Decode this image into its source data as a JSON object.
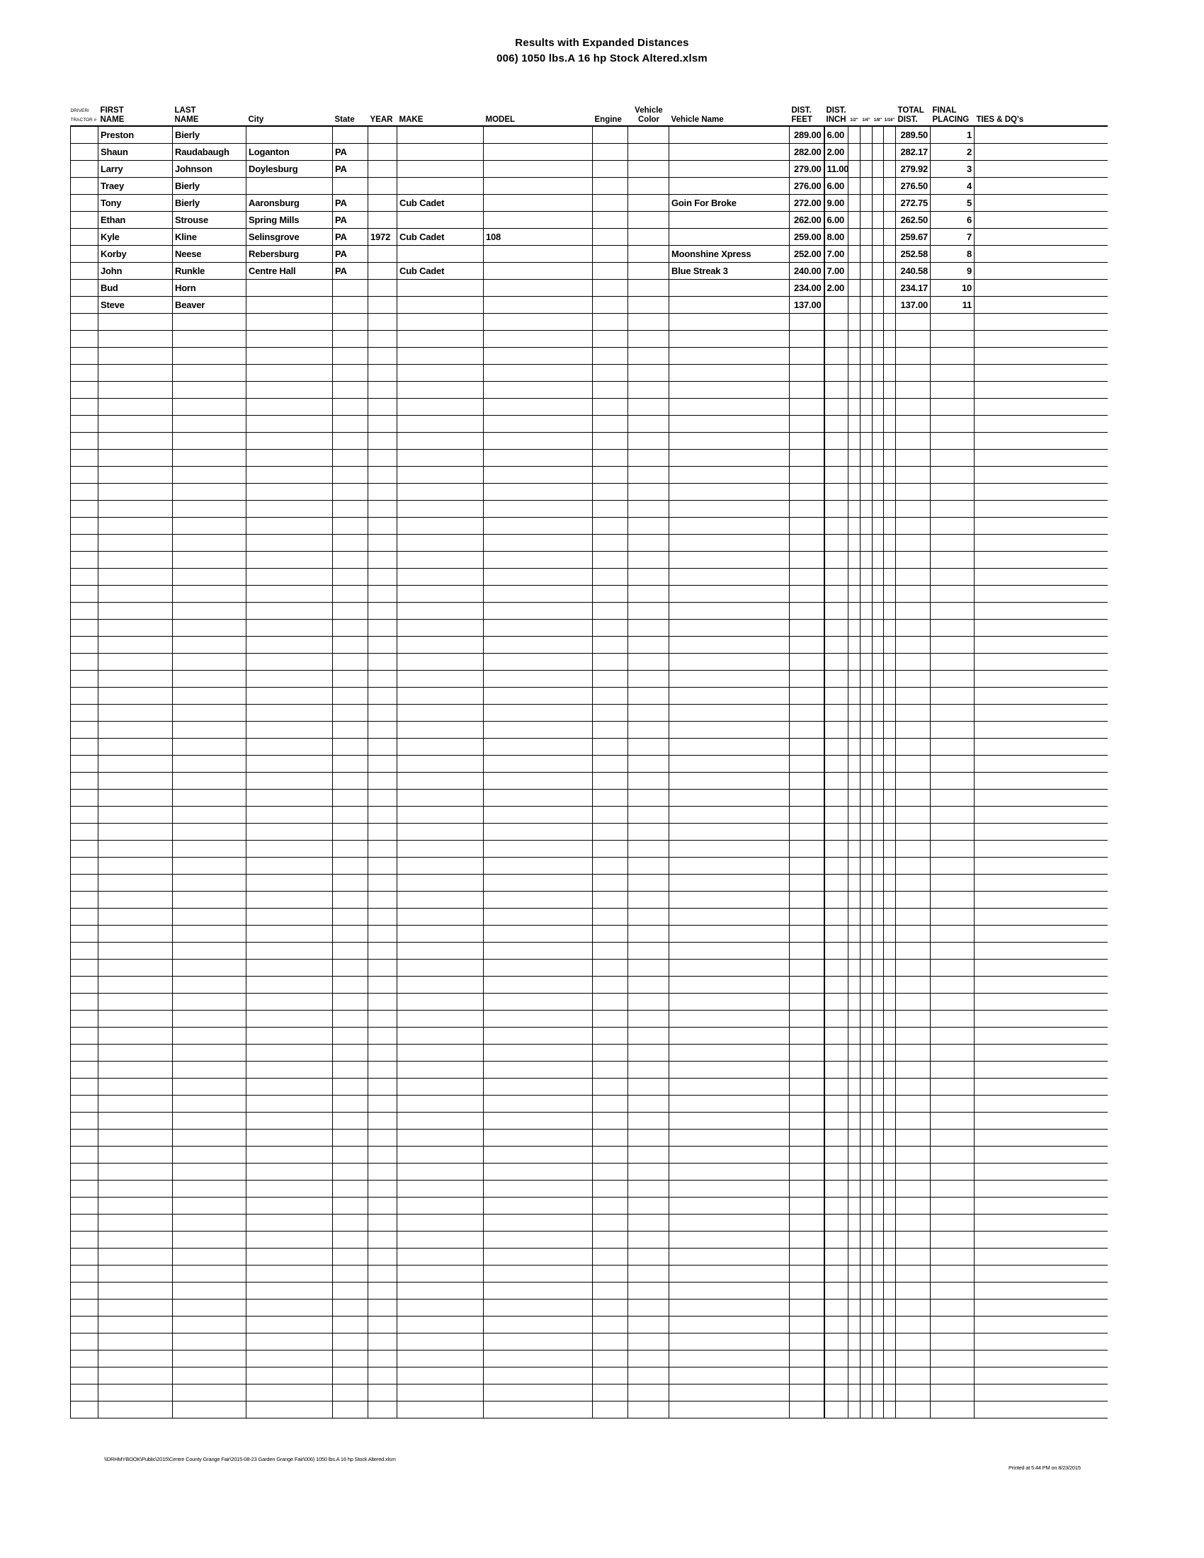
{
  "title": "Results with Expanded Distances",
  "subtitle": "006) 1050 lbs.A 16 hp Stock Altered.xlsm",
  "headers": {
    "driver": [
      "DRIVER/",
      "TRACTOR #"
    ],
    "first_name": [
      "FIRST",
      "NAME"
    ],
    "last_name": [
      "LAST",
      "NAME"
    ],
    "city": "City",
    "state": "State",
    "year": "YEAR",
    "make": "MAKE",
    "model": "MODEL",
    "engine": "Engine",
    "vehicle_color": [
      "Vehicle",
      "Color"
    ],
    "vehicle_name": "Vehicle Name",
    "dist_feet": [
      "DIST.",
      "FEET"
    ],
    "dist_inch": [
      "DIST.",
      "INCH"
    ],
    "fractions": [
      "1/2\"",
      "1/4\"",
      "1/8\"",
      "1/16\""
    ],
    "total_dist": [
      "TOTAL",
      "DIST."
    ],
    "final_placing": [
      "FINAL",
      "PLACING"
    ],
    "ties": "TIES & DQ's"
  },
  "rows": [
    {
      "first": "Preston",
      "last": "Bierly",
      "city": "",
      "state": "",
      "year": "",
      "make": "",
      "model": "",
      "vehicle_name": "",
      "feet": "289.00",
      "inch": "6.00",
      "total": "289.50",
      "place": "1"
    },
    {
      "first": "Shaun",
      "last": "Raudabaugh",
      "city": "Loganton",
      "state": "PA",
      "year": "",
      "make": "",
      "model": "",
      "vehicle_name": "",
      "feet": "282.00",
      "inch": "2.00",
      "total": "282.17",
      "place": "2"
    },
    {
      "first": "Larry",
      "last": "Johnson",
      "city": "Doylesburg",
      "state": "PA",
      "year": "",
      "make": "",
      "model": "",
      "vehicle_name": "",
      "feet": "279.00",
      "inch": "11.00",
      "total": "279.92",
      "place": "3"
    },
    {
      "first": "Traey",
      "last": "Bierly",
      "city": "",
      "state": "",
      "year": "",
      "make": "",
      "model": "",
      "vehicle_name": "",
      "feet": "276.00",
      "inch": "6.00",
      "total": "276.50",
      "place": "4"
    },
    {
      "first": "Tony",
      "last": "Bierly",
      "city": "Aaronsburg",
      "state": "PA",
      "year": "",
      "make": "Cub Cadet",
      "model": "",
      "vehicle_name": "Goin For Broke",
      "feet": "272.00",
      "inch": "9.00",
      "total": "272.75",
      "place": "5"
    },
    {
      "first": "Ethan",
      "last": "Strouse",
      "city": "Spring Mills",
      "state": "PA",
      "year": "",
      "make": "",
      "model": "",
      "vehicle_name": "",
      "feet": "262.00",
      "inch": "6.00",
      "total": "262.50",
      "place": "6"
    },
    {
      "first": "Kyle",
      "last": "Kline",
      "city": "Selinsgrove",
      "state": "PA",
      "year": "1972",
      "make": "Cub Cadet",
      "model": "108",
      "vehicle_name": "",
      "feet": "259.00",
      "inch": "8.00",
      "total": "259.67",
      "place": "7"
    },
    {
      "first": "Korby",
      "last": "Neese",
      "city": "Rebersburg",
      "state": "PA",
      "year": "",
      "make": "",
      "model": "",
      "vehicle_name": "Moonshine Xpress",
      "feet": "252.00",
      "inch": "7.00",
      "total": "252.58",
      "place": "8"
    },
    {
      "first": "John",
      "last": "Runkle",
      "city": "Centre Hall",
      "state": "PA",
      "year": "",
      "make": "Cub Cadet",
      "model": "",
      "vehicle_name": "Blue Streak 3",
      "feet": "240.00",
      "inch": "7.00",
      "total": "240.58",
      "place": "9"
    },
    {
      "first": "Bud",
      "last": "Horn",
      "city": "",
      "state": "",
      "year": "",
      "make": "",
      "model": "",
      "vehicle_name": "",
      "feet": "234.00",
      "inch": "2.00",
      "total": "234.17",
      "place": "10"
    },
    {
      "first": "Steve",
      "last": "Beaver",
      "city": "",
      "state": "",
      "year": "",
      "make": "",
      "model": "",
      "vehicle_name": "",
      "feet": "137.00",
      "inch": "",
      "total": "137.00",
      "place": "11"
    }
  ],
  "footer": {
    "path": "\\\\DRHMYBOOK\\Public\\2015\\Centre County Grange Fair\\2015-08-23 Garden Grange Fair\\006) 1050 lbs.A 16 hp Stock Altered.xlsm",
    "printed": "Printed at 5:44 PM on 8/23/2015"
  }
}
